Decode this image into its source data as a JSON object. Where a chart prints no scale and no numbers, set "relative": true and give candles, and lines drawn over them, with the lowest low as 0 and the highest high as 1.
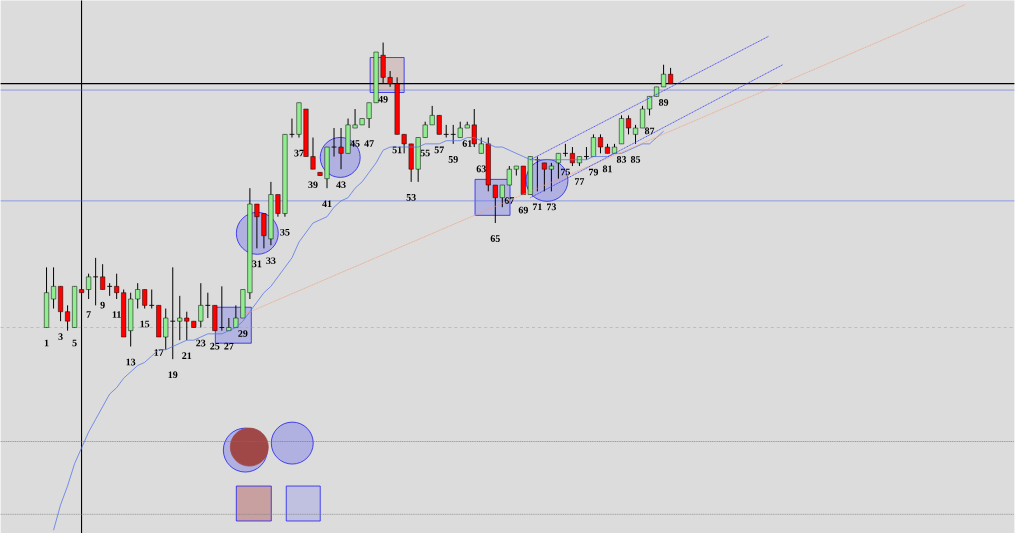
{
  "chart_data": {
    "type": "candlestick",
    "relative": true,
    "categories": [
      "1",
      null,
      "3",
      null,
      "5",
      null,
      "7",
      null,
      "9",
      null,
      "11",
      null,
      "13",
      null,
      "15",
      null,
      "17",
      null,
      "19",
      null,
      "21",
      null,
      "23",
      null,
      "25",
      null,
      "27",
      null,
      "29",
      null,
      "31",
      null,
      "33",
      null,
      "35",
      null,
      "37",
      null,
      "39",
      null,
      "41",
      null,
      "43",
      null,
      "45",
      null,
      "47",
      null,
      "49",
      null,
      "51",
      null,
      "53",
      null,
      "55",
      null,
      "57",
      null,
      "59",
      null,
      "61",
      null,
      "63",
      null,
      "65",
      null,
      "67",
      null,
      "69",
      null,
      "71",
      null,
      "73",
      null,
      "75",
      null,
      "77",
      null,
      "79",
      null,
      "81",
      null,
      "83",
      null,
      "85",
      null,
      "87",
      null,
      "89",
      null,
      null,
      null,
      null,
      null,
      null,
      null,
      null,
      null,
      null,
      null,
      null,
      null,
      null,
      null,
      null,
      null,
      null,
      null,
      null,
      null,
      null,
      null,
      null,
      null,
      null,
      null,
      null,
      null,
      null,
      null,
      null,
      null,
      null,
      null,
      null,
      null,
      null,
      null,
      null,
      null,
      null,
      null,
      null,
      null,
      null,
      null,
      null,
      null,
      null
    ],
    "ohlc": [
      [
        0.1,
        0.29,
        0.1,
        0.21
      ],
      [
        0.19,
        0.29,
        0.16,
        0.23
      ],
      [
        0.23,
        0.23,
        0.12,
        0.15
      ],
      [
        0.15,
        0.17,
        0.09,
        0.12
      ],
      [
        0.1,
        0.23,
        0.1,
        0.23
      ],
      [
        0.22,
        0.22,
        0.21,
        0.21
      ],
      [
        0.22,
        0.27,
        0.19,
        0.26
      ],
      [
        0.26,
        0.32,
        0.17,
        0.26
      ],
      [
        0.26,
        0.3,
        0.22,
        0.22
      ],
      [
        0.23,
        0.24,
        0.2,
        0.23
      ],
      [
        0.23,
        0.27,
        0.19,
        0.21
      ],
      [
        0.21,
        0.22,
        0.07,
        0.07
      ],
      [
        0.09,
        0.21,
        0.04,
        0.19
      ],
      [
        0.19,
        0.24,
        0.16,
        0.22
      ],
      [
        0.22,
        0.22,
        0.16,
        0.17
      ],
      [
        0.17,
        0.22,
        0.16,
        0.17
      ],
      [
        0.17,
        0.17,
        0.07,
        0.07
      ],
      [
        0.07,
        0.16,
        0.03,
        0.13
      ],
      [
        0.12,
        0.29,
        0.0,
        0.12
      ],
      [
        0.12,
        0.2,
        0.06,
        0.13
      ],
      [
        0.13,
        0.15,
        0.06,
        0.12
      ],
      [
        0.12,
        0.12,
        0.1,
        0.1
      ],
      [
        0.12,
        0.24,
        0.1,
        0.17
      ],
      [
        0.17,
        0.21,
        0.13,
        0.17
      ],
      [
        0.17,
        0.17,
        0.09,
        0.09
      ],
      [
        0.1,
        0.23,
        0.09,
        0.1
      ],
      [
        0.09,
        0.13,
        0.09,
        0.1
      ],
      [
        0.1,
        0.17,
        0.1,
        0.13
      ],
      [
        0.13,
        0.22,
        0.13,
        0.22
      ],
      [
        0.21,
        0.54,
        0.19,
        0.49
      ],
      [
        0.49,
        0.49,
        0.35,
        0.45
      ],
      [
        0.46,
        0.46,
        0.35,
        0.39
      ],
      [
        0.38,
        0.56,
        0.36,
        0.52
      ],
      [
        0.52,
        0.52,
        0.45,
        0.46
      ],
      [
        0.46,
        0.71,
        0.45,
        0.71
      ],
      [
        0.71,
        0.76,
        0.7,
        0.71
      ],
      [
        0.71,
        0.81,
        0.7,
        0.81
      ],
      [
        0.79,
        0.79,
        0.64,
        0.64
      ],
      [
        0.64,
        0.7,
        0.6,
        0.6
      ],
      [
        0.59,
        0.59,
        0.58,
        0.58
      ],
      [
        0.57,
        0.67,
        0.54,
        0.67
      ],
      [
        0.67,
        0.73,
        0.64,
        0.67
      ],
      [
        0.67,
        0.73,
        0.6,
        0.65
      ],
      [
        0.65,
        0.76,
        0.65,
        0.74
      ],
      [
        0.73,
        0.79,
        0.73,
        0.74
      ],
      [
        0.74,
        0.76,
        0.74,
        0.76
      ],
      [
        0.76,
        0.81,
        0.73,
        0.81
      ],
      [
        0.81,
        0.97,
        0.81,
        0.97
      ],
      [
        0.96,
        1.0,
        0.87,
        0.89
      ],
      [
        0.89,
        0.91,
        0.86,
        0.87
      ],
      [
        0.87,
        0.89,
        0.71,
        0.71
      ],
      [
        0.71,
        0.71,
        0.65,
        0.68
      ],
      [
        0.68,
        0.68,
        0.56,
        0.6
      ],
      [
        0.6,
        0.7,
        0.56,
        0.7
      ],
      [
        0.7,
        0.75,
        0.7,
        0.74
      ],
      [
        0.74,
        0.8,
        0.74,
        0.77
      ],
      [
        0.77,
        0.77,
        0.71,
        0.71
      ],
      [
        0.71,
        0.74,
        0.7,
        0.71
      ],
      [
        0.71,
        0.74,
        0.68,
        0.71
      ],
      [
        0.7,
        0.75,
        0.7,
        0.73
      ],
      [
        0.73,
        0.75,
        0.73,
        0.74
      ],
      [
        0.74,
        0.79,
        0.67,
        0.68
      ],
      [
        0.65,
        0.7,
        0.65,
        0.68
      ],
      [
        0.68,
        0.7,
        0.53,
        0.55
      ],
      [
        0.55,
        0.55,
        0.43,
        0.51
      ],
      [
        0.51,
        0.55,
        0.48,
        0.55
      ],
      [
        0.55,
        0.61,
        0.55,
        0.6
      ],
      [
        0.6,
        0.61,
        0.58,
        0.61
      ],
      [
        0.61,
        0.61,
        0.52,
        0.52
      ],
      [
        0.52,
        0.64,
        0.52,
        0.64
      ],
      [
        0.63,
        0.64,
        0.53,
        0.63
      ],
      [
        0.62,
        0.62,
        0.53,
        0.6
      ],
      [
        0.6,
        0.62,
        0.53,
        0.61
      ],
      [
        0.62,
        0.65,
        0.57,
        0.65
      ],
      [
        0.65,
        0.68,
        0.64,
        0.65
      ],
      [
        0.65,
        0.67,
        0.61,
        0.62
      ],
      [
        0.62,
        0.64,
        0.61,
        0.64
      ],
      [
        0.64,
        0.67,
        0.63,
        0.64
      ],
      [
        0.64,
        0.71,
        0.64,
        0.7
      ],
      [
        0.7,
        0.71,
        0.65,
        0.67
      ],
      [
        0.67,
        0.68,
        0.65,
        0.65
      ],
      [
        0.65,
        0.68,
        0.65,
        0.67
      ],
      [
        0.68,
        0.77,
        0.68,
        0.76
      ],
      [
        0.76,
        0.77,
        0.71,
        0.73
      ],
      [
        0.71,
        0.74,
        0.68,
        0.73
      ],
      [
        0.73,
        0.8,
        0.73,
        0.79
      ],
      [
        0.79,
        0.83,
        0.77,
        0.83
      ],
      [
        0.83,
        0.86,
        0.83,
        0.86
      ],
      [
        0.86,
        0.93,
        0.86,
        0.9
      ],
      [
        0.9,
        0.92,
        0.87,
        0.87
      ],
      null,
      null,
      null,
      null,
      null,
      null,
      null,
      null,
      null,
      null,
      null,
      null,
      null,
      null,
      null,
      null,
      null,
      null,
      null,
      null,
      null,
      null,
      null,
      null,
      null,
      null,
      null,
      null,
      null,
      null,
      null,
      null,
      null,
      null,
      null,
      null,
      null,
      null,
      null,
      null,
      null,
      null,
      null,
      null,
      null,
      null,
      null,
      null,
      null
    ],
    "series": [
      {
        "type": "line",
        "color": "#5a78e6",
        "values": [
          null,
          -0.54,
          -0.46,
          -0.4,
          -0.33,
          -0.28,
          -0.23,
          -0.19,
          -0.15,
          -0.11,
          -0.09,
          -0.06,
          -0.04,
          -0.02,
          -0.01,
          0.01,
          0.03,
          0.03,
          0.04,
          0.05,
          0.06,
          0.06,
          0.07,
          0.08,
          0.08,
          0.08,
          0.09,
          0.1,
          0.12,
          0.15,
          0.18,
          0.21,
          0.23,
          0.26,
          0.29,
          0.32,
          0.37,
          0.4,
          0.43,
          0.44,
          0.45,
          0.48,
          0.5,
          0.51,
          0.54,
          0.56,
          0.59,
          0.62,
          0.66,
          0.67,
          0.67,
          0.67,
          0.67,
          0.67,
          0.68,
          0.68,
          0.68,
          0.69,
          0.69,
          0.69,
          0.7,
          0.7,
          0.69,
          0.68,
          0.67,
          0.67,
          0.66,
          0.65,
          0.64,
          0.63,
          0.63,
          0.63,
          0.63,
          0.63,
          0.63,
          0.63,
          0.63,
          0.63,
          0.64,
          0.64,
          0.64,
          0.65,
          0.65,
          0.66,
          0.67,
          0.68,
          0.68,
          0.7,
          0.72,
          null,
          null,
          null,
          null,
          null,
          null,
          null,
          null,
          null,
          null,
          null,
          null,
          null,
          null,
          null,
          null,
          null,
          null,
          null,
          null,
          null,
          null,
          null,
          null,
          null,
          null,
          null,
          null,
          null,
          null,
          null,
          null,
          null,
          null,
          null,
          null,
          null,
          null,
          null,
          null,
          null,
          null,
          null,
          null,
          null,
          null,
          null,
          null,
          null,
          null
        ]
      },
      {
        "type": "line",
        "color": "#f0a080",
        "line_style": "dotted",
        "values": [
          null,
          null,
          null,
          null,
          null,
          null,
          null,
          null,
          null,
          null,
          null,
          null,
          null,
          null,
          null,
          null,
          null,
          null,
          null,
          null,
          null,
          null,
          null,
          null,
          null,
          null,
          null,
          null,
          0.14,
          null,
          null,
          null,
          null,
          null,
          null,
          null,
          null,
          null,
          null,
          null,
          null,
          null,
          null,
          null,
          null,
          null,
          null,
          null,
          null,
          null,
          null,
          null,
          null,
          null,
          null,
          null,
          null,
          null,
          null,
          null,
          null,
          null,
          null,
          null,
          null,
          null,
          null,
          null,
          null,
          null,
          null,
          null,
          null,
          null,
          null,
          null,
          null,
          null,
          null,
          null,
          null,
          null,
          null,
          null,
          null,
          null,
          null,
          null,
          null,
          null,
          null,
          null,
          null,
          null,
          null,
          null,
          null,
          null,
          null,
          null,
          null,
          null,
          null,
          null,
          null,
          null,
          null,
          null,
          null,
          null,
          null,
          null,
          null,
          null,
          null,
          null,
          null,
          null,
          null,
          null,
          null,
          null,
          null,
          null,
          null,
          null,
          null,
          null,
          null,
          null,
          null,
          1.12,
          null,
          null,
          null,
          null,
          null,
          null,
          null
        ]
      },
      {
        "type": "line",
        "color": "#3030f0",
        "line_style": "dotted",
        "values": [
          null,
          null,
          null,
          null,
          null,
          null,
          null,
          null,
          null,
          null,
          null,
          null,
          null,
          null,
          null,
          null,
          null,
          null,
          null,
          null,
          null,
          null,
          null,
          null,
          null,
          null,
          null,
          null,
          null,
          null,
          null,
          null,
          null,
          null,
          null,
          null,
          null,
          null,
          null,
          null,
          null,
          null,
          null,
          null,
          null,
          null,
          null,
          null,
          null,
          null,
          null,
          null,
          null,
          null,
          null,
          null,
          null,
          null,
          null,
          null,
          null,
          null,
          null,
          null,
          null,
          null,
          null,
          null,
          null,
          0.63,
          null,
          null,
          null,
          null,
          null,
          null,
          null,
          null,
          null,
          null,
          null,
          null,
          null,
          null,
          null,
          null,
          null,
          null,
          null,
          null,
          null,
          null,
          null,
          null,
          null,
          null,
          null,
          null,
          null,
          null,
          null,
          null,
          null,
          1.02,
          null,
          null,
          null,
          null,
          null,
          null,
          null,
          null,
          null,
          null,
          null,
          null,
          null,
          null,
          null,
          null,
          null,
          null,
          null,
          null,
          null,
          null,
          null,
          null,
          null,
          null,
          null,
          null,
          null,
          null,
          null,
          null,
          null,
          null,
          null
        ]
      },
      {
        "type": "line",
        "color": "#3030f0",
        "line_style": "dotted",
        "values": [
          null,
          null,
          null,
          null,
          null,
          null,
          null,
          null,
          null,
          null,
          null,
          null,
          null,
          null,
          null,
          null,
          null,
          null,
          null,
          null,
          null,
          null,
          null,
          null,
          null,
          null,
          null,
          null,
          null,
          null,
          null,
          null,
          null,
          null,
          null,
          null,
          null,
          null,
          null,
          null,
          null,
          null,
          null,
          null,
          null,
          null,
          null,
          null,
          null,
          null,
          null,
          null,
          null,
          null,
          null,
          null,
          null,
          null,
          null,
          null,
          null,
          null,
          null,
          null,
          null,
          null,
          null,
          null,
          null,
          0.51,
          null,
          null,
          null,
          null,
          null,
          null,
          null,
          null,
          null,
          null,
          null,
          null,
          null,
          null,
          null,
          null,
          null,
          null,
          null,
          null,
          null,
          null,
          null,
          null,
          null,
          null,
          null,
          null,
          null,
          null,
          null,
          null,
          null,
          null,
          null,
          0.93,
          null,
          null,
          null,
          null,
          null,
          null,
          null,
          null,
          null,
          null,
          null,
          null,
          null,
          null,
          null,
          null,
          null,
          null,
          null,
          null,
          null,
          null,
          null,
          null,
          null,
          null,
          null,
          null,
          null,
          null,
          null,
          null,
          null
        ]
      }
    ],
    "ref_lines": [
      {
        "axis": "y",
        "value": 0.87,
        "color": "#000000",
        "line_style": "solid"
      },
      {
        "axis": "y",
        "value": 0.85,
        "color": "#5a6ee6",
        "line_style": "solid"
      },
      {
        "axis": "y",
        "value": 0.5,
        "color": "#5a6ee6",
        "line_style": "solid"
      },
      {
        "axis": "y",
        "value": 0.1,
        "color": "#a8a8a8",
        "line_style": "dashed"
      },
      {
        "axis": "y",
        "value": -0.26,
        "color": "#00c000",
        "line_style": "dotted"
      },
      {
        "axis": "y",
        "value": -0.49,
        "color": "#808080",
        "line_style": "dotted"
      }
    ]
  }
}
